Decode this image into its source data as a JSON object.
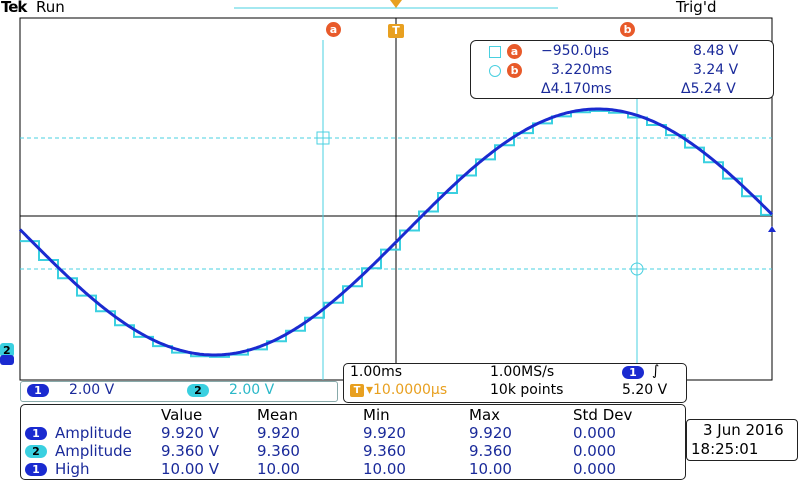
{
  "brand": "Tek",
  "run_state": "Run",
  "trigger_state": "Trig'd",
  "cursors": {
    "a": {
      "marker": "a",
      "time": "−950.0µs",
      "voltage": "8.48 V"
    },
    "b": {
      "marker": "b",
      "time": "3.220ms",
      "voltage": "3.24 V"
    },
    "delta": {
      "time": "Δ4.170ms",
      "voltage": "Δ5.24 V"
    }
  },
  "trigger_marker": "T",
  "channel_markers": {
    "ch1": "1",
    "ch2": "2"
  },
  "timebase": {
    "scale": "1.00ms",
    "sample_rate": "1.00MS/s",
    "position": "▾10.0000µs",
    "record_length": "10k points",
    "trigger_channel": "1",
    "trigger_slope": "∫",
    "trigger_level": "5.20 V"
  },
  "channels": [
    {
      "id": "1",
      "scale": "2.00 V"
    },
    {
      "id": "2",
      "scale": "2.00 V"
    }
  ],
  "measurements": {
    "headers": [
      "Value",
      "Mean",
      "Min",
      "Max",
      "Std Dev"
    ],
    "rows": [
      {
        "channel": "1",
        "name": "Amplitude",
        "value": "9.920 V",
        "mean": "9.920",
        "min": "9.920",
        "max": "9.920",
        "std": "0.000"
      },
      {
        "channel": "2",
        "name": "Amplitude",
        "value": "9.360 V",
        "mean": "9.360",
        "min": "9.360",
        "max": "9.360",
        "std": "0.000"
      },
      {
        "channel": "1",
        "name": "High",
        "value": "10.00 V",
        "mean": "10.00",
        "min": "10.00",
        "max": "10.00",
        "std": "0.000"
      }
    ]
  },
  "date": "3 Jun 2016",
  "time": "18:25:01",
  "colors": {
    "ch1": "#1a2ad0",
    "ch2": "#3ad0e0",
    "cursor": "#4ad0e0",
    "marker": "#e85a2a",
    "grid": "#000000"
  }
}
